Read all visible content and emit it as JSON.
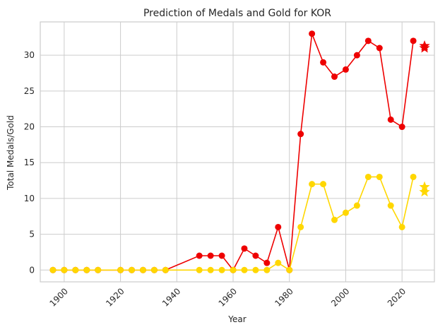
{
  "chart_data": {
    "type": "line",
    "title": "Prediction of Medals and Gold for KOR",
    "xlabel": "Year",
    "ylabel": "Total Medals/Gold",
    "xlim": [
      1891.5,
      2031.5
    ],
    "ylim": [
      -1.65,
      34.65
    ],
    "xticks": [
      1900,
      1920,
      1940,
      1960,
      1980,
      2000,
      2020
    ],
    "yticks": [
      0,
      5,
      10,
      15,
      20,
      25,
      30
    ],
    "grid": true,
    "legend": "none",
    "series": [
      {
        "color": "#ee0000",
        "marker": "circle",
        "x": [
          1896,
          1900,
          1904,
          1908,
          1912,
          1920,
          1924,
          1928,
          1932,
          1936,
          1948,
          1952,
          1956,
          1960,
          1964,
          1968,
          1972,
          1976,
          1980,
          1984,
          1988,
          1992,
          1996,
          2000,
          2004,
          2008,
          2012,
          2016,
          2020,
          2024
        ],
        "y": [
          0,
          0,
          0,
          0,
          0,
          0,
          0,
          0,
          0,
          0,
          2,
          2,
          2,
          0,
          3,
          2,
          1,
          6,
          0,
          19,
          33,
          29,
          27,
          28,
          30,
          32,
          31,
          21,
          20,
          32
        ]
      },
      {
        "color": "#ffd700",
        "marker": "circle",
        "x": [
          1896,
          1900,
          1904,
          1908,
          1912,
          1920,
          1924,
          1928,
          1932,
          1936,
          1948,
          1952,
          1956,
          1960,
          1964,
          1968,
          1972,
          1976,
          1980,
          1984,
          1988,
          1992,
          1996,
          2000,
          2004,
          2008,
          2012,
          2016,
          2020,
          2024
        ],
        "y": [
          0,
          0,
          0,
          0,
          0,
          0,
          0,
          0,
          0,
          0,
          0,
          0,
          0,
          0,
          0,
          0,
          0,
          1,
          0,
          6,
          12,
          12,
          7,
          8,
          9,
          13,
          13,
          9,
          6,
          13
        ]
      }
    ],
    "predictions": [
      {
        "color": "#ee0000",
        "marker": "star",
        "points": [
          {
            "x": 2028,
            "y": 31.3
          },
          {
            "x": 2028,
            "y": 31.0
          }
        ]
      },
      {
        "color": "#ffd700",
        "marker": "star",
        "points": [
          {
            "x": 2028,
            "y": 11.6
          },
          {
            "x": 2028,
            "y": 10.9
          }
        ]
      }
    ]
  }
}
